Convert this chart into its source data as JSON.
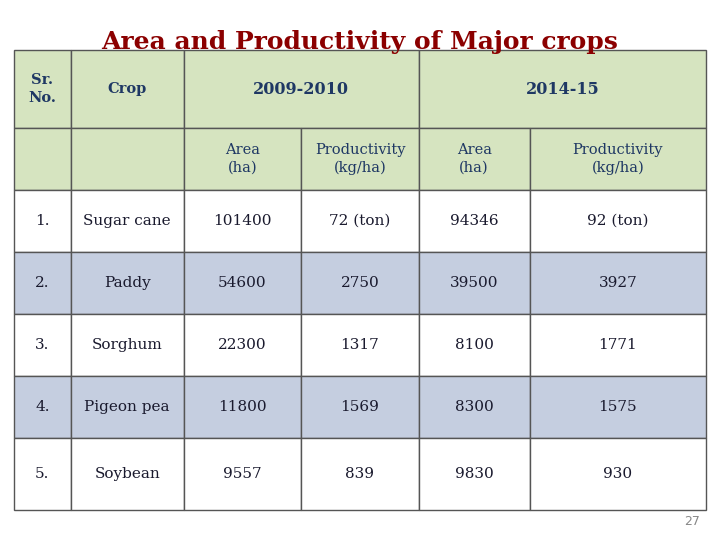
{
  "title": "Area and Productivity of Major crops",
  "title_color": "#8b0000",
  "title_fontsize": 18,
  "page_number": "27",
  "header_bg_color": "#d6e4c0",
  "header_text_color": "#1f3864",
  "row_odd_bg": "#ffffff",
  "row_even_bg": "#c5cee0",
  "border_color": "#555555",
  "data_text_color": "#1a1a2e",
  "rows": [
    [
      "1.",
      "Sugar cane",
      "101400",
      "72 (ton)",
      "94346",
      "92 (ton)"
    ],
    [
      "2.",
      "Paddy",
      "54600",
      "2750",
      "39500",
      "3927"
    ],
    [
      "3.",
      "Sorghum",
      "22300",
      "1317",
      "8100",
      "1771"
    ],
    [
      "4.",
      "Pigeon pea",
      "11800",
      "1569",
      "8300",
      "1575"
    ],
    [
      "5.",
      "Soybean",
      "9557",
      "839",
      "9830",
      "930"
    ]
  ],
  "background_color": "#ffffff"
}
